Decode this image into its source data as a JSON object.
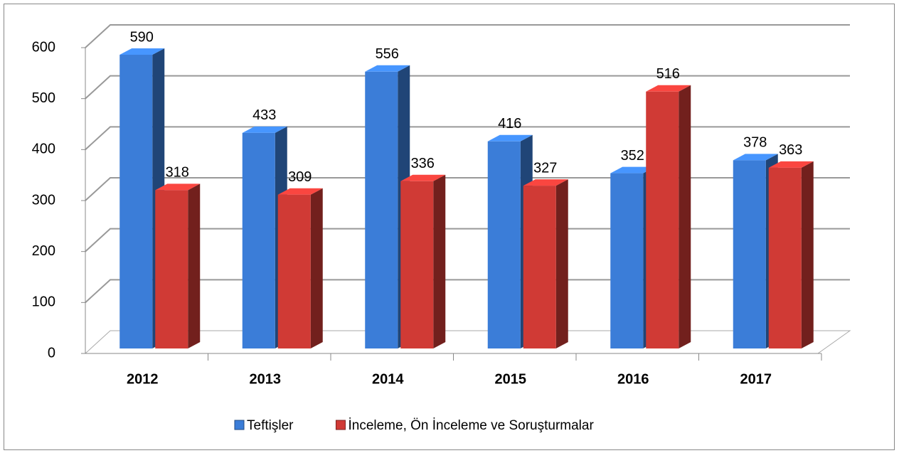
{
  "chart_data": {
    "type": "bar3d",
    "categories": [
      "2012",
      "2013",
      "2014",
      "2015",
      "2016",
      "2017"
    ],
    "series": [
      {
        "name": "Teftişler",
        "color": "#3b7dd8",
        "values": [
          590,
          433,
          556,
          416,
          352,
          378
        ]
      },
      {
        "name": "İnceleme, Ön İnceleme ve Soruşturmalar",
        "color": "#d03a35",
        "values": [
          318,
          309,
          336,
          327,
          516,
          363
        ]
      }
    ],
    "ylim": [
      0,
      600
    ],
    "yticks": [
      0,
      100,
      200,
      300,
      400,
      500,
      600
    ],
    "grid": true,
    "legend": "bottom"
  }
}
